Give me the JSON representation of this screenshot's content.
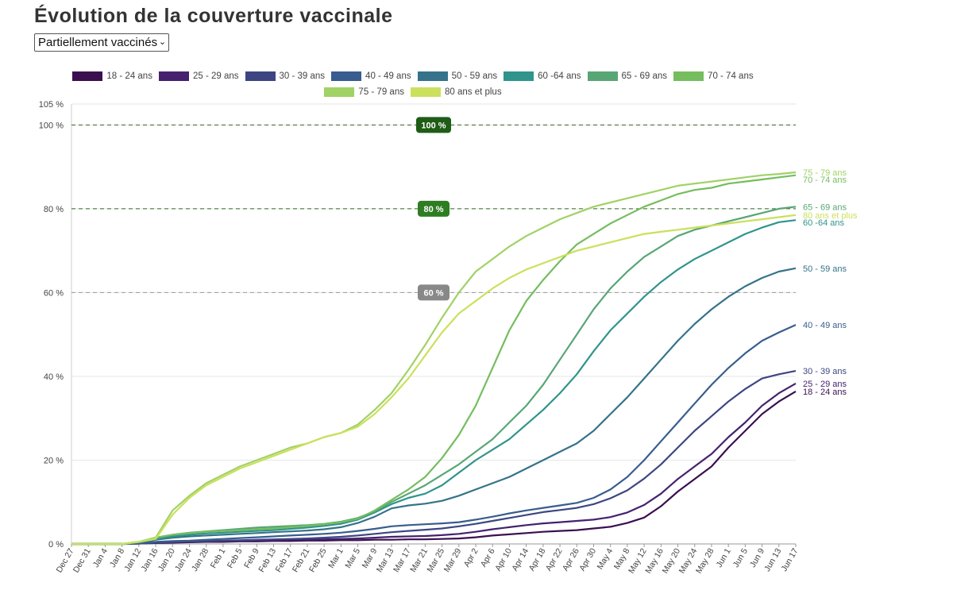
{
  "page": {
    "title": "Évolution de la couverture vaccinale",
    "selector": {
      "selected": "Partiellement vaccinés"
    }
  },
  "chart_data": {
    "type": "line",
    "title": "Évolution de la couverture vaccinale",
    "ylim": [
      0,
      105
    ],
    "y_ticks": [
      "0 %",
      "20 %",
      "40 %",
      "60 %",
      "80 %",
      "100 %",
      "105 %"
    ],
    "y_tick_values": [
      0,
      20,
      40,
      60,
      80,
      100,
      105
    ],
    "grid": "horizontal",
    "legend_position": "top",
    "x": [
      "Dec 27",
      "Dec 31",
      "Jan 4",
      "Jan 8",
      "Jan 12",
      "Jan 16",
      "Jan 20",
      "Jan 24",
      "Jan 28",
      "Feb 1",
      "Feb 5",
      "Feb 9",
      "Feb 13",
      "Feb 17",
      "Feb 21",
      "Feb 25",
      "Mar 1",
      "Mar 5",
      "Mar 9",
      "Mar 13",
      "Mar 17",
      "Mar 21",
      "Mar 25",
      "Mar 29",
      "Apr 2",
      "Apr 6",
      "Apr 10",
      "Apr 14",
      "Apr 18",
      "Apr 22",
      "Apr 26",
      "Apr 30",
      "May 4",
      "May 8",
      "May 12",
      "May 16",
      "May 20",
      "May 24",
      "May 28",
      "Jun 1",
      "Jun 5",
      "Jun 9",
      "Jun 13",
      "Jun 17"
    ],
    "reference_lines": [
      {
        "value": 100,
        "label": "100 %",
        "badge_color": "#1f5c16",
        "line_color": "#2e6b22"
      },
      {
        "value": 80,
        "label": "80 %",
        "badge_color": "#2e7d22",
        "line_color": "#2e6b22"
      },
      {
        "value": 60,
        "label": "60 %",
        "badge_color": "#888888",
        "line_color": "#999999"
      }
    ],
    "series": [
      {
        "name": "18 - 24 ans",
        "end_label": "18 - 24 ans",
        "color": "#3b0f4f",
        "values": [
          0,
          0,
          0,
          0,
          0.1,
          0.2,
          0.3,
          0.4,
          0.5,
          0.5,
          0.6,
          0.6,
          0.7,
          0.7,
          0.8,
          0.8,
          0.9,
          0.9,
          1.0,
          1.0,
          1.1,
          1.1,
          1.2,
          1.3,
          1.6,
          2.0,
          2.3,
          2.6,
          2.9,
          3.1,
          3.3,
          3.7,
          4.1,
          5.0,
          6.3,
          9.0,
          12.5,
          15.5,
          18.5,
          23.0,
          27.0,
          31.0,
          34.0,
          36.4
        ]
      },
      {
        "name": "25 - 29 ans",
        "end_label": "25 - 29 ans",
        "color": "#45216e",
        "values": [
          0,
          0,
          0,
          0,
          0.1,
          0.3,
          0.4,
          0.5,
          0.6,
          0.7,
          0.7,
          0.8,
          0.9,
          1.0,
          1.0,
          1.1,
          1.2,
          1.3,
          1.5,
          1.7,
          1.8,
          1.9,
          2.1,
          2.4,
          2.9,
          3.5,
          4.0,
          4.5,
          4.9,
          5.2,
          5.5,
          5.8,
          6.4,
          7.5,
          9.3,
          12.0,
          15.5,
          18.5,
          21.5,
          25.5,
          29.0,
          33.0,
          36.0,
          38.3
        ]
      },
      {
        "name": "30 - 39 ans",
        "end_label": "30 - 39 ans",
        "color": "#3d4682",
        "values": [
          0,
          0,
          0,
          0,
          0.1,
          0.3,
          0.5,
          0.6,
          0.7,
          0.8,
          0.9,
          1.0,
          1.1,
          1.2,
          1.3,
          1.5,
          1.7,
          2.0,
          2.4,
          2.8,
          3.1,
          3.4,
          3.7,
          4.2,
          4.8,
          5.5,
          6.2,
          6.9,
          7.6,
          8.1,
          8.6,
          9.5,
          10.9,
          12.8,
          15.6,
          19.0,
          23.0,
          27.0,
          30.5,
          34.0,
          37.0,
          39.5,
          40.5,
          41.3
        ]
      },
      {
        "name": "40 - 49 ans",
        "end_label": "40 - 49 ans",
        "color": "#385d8e",
        "values": [
          0,
          0,
          0,
          0,
          0.2,
          0.5,
          0.7,
          0.8,
          1.0,
          1.2,
          1.4,
          1.6,
          1.8,
          2.0,
          2.2,
          2.4,
          2.7,
          3.1,
          3.6,
          4.2,
          4.5,
          4.7,
          4.9,
          5.2,
          5.8,
          6.5,
          7.3,
          8.0,
          8.6,
          9.2,
          9.8,
          11.0,
          13.0,
          16.0,
          20.0,
          24.5,
          29.0,
          33.5,
          38.0,
          42.0,
          45.5,
          48.5,
          50.5,
          52.3
        ]
      },
      {
        "name": "50 - 59 ans",
        "end_label": "50 - 59 ans",
        "color": "#347389",
        "values": [
          0,
          0,
          0,
          0,
          0.3,
          1.0,
          1.5,
          1.8,
          2.0,
          2.2,
          2.4,
          2.6,
          2.8,
          3.0,
          3.2,
          3.5,
          4.0,
          5.0,
          6.5,
          8.5,
          9.2,
          9.6,
          10.3,
          11.5,
          13.0,
          14.5,
          16.0,
          18.0,
          20.0,
          22.0,
          24.0,
          27.0,
          31.0,
          35.0,
          39.5,
          44.0,
          48.5,
          52.5,
          56.0,
          59.0,
          61.5,
          63.5,
          65.0,
          65.8
        ]
      },
      {
        "name": "60 -64 ans",
        "end_label": "60 -64 ans",
        "color": "#30948c",
        "values": [
          0,
          0,
          0,
          0,
          0.4,
          1.2,
          1.8,
          2.2,
          2.5,
          2.7,
          2.9,
          3.1,
          3.3,
          3.6,
          3.9,
          4.3,
          4.8,
          5.8,
          7.5,
          9.5,
          11.0,
          12.0,
          14.0,
          17.0,
          20.0,
          22.5,
          25.0,
          28.5,
          32.0,
          36.0,
          40.5,
          46.0,
          51.0,
          55.0,
          59.0,
          62.5,
          65.5,
          68.0,
          70.0,
          72.0,
          74.0,
          75.5,
          76.8,
          77.3
        ]
      },
      {
        "name": "65 - 69 ans",
        "end_label": "65 - 69 ans",
        "color": "#58a675",
        "values": [
          0,
          0,
          0,
          0,
          0.5,
          1.5,
          2.2,
          2.7,
          3.0,
          3.3,
          3.6,
          3.9,
          4.1,
          4.3,
          4.5,
          4.8,
          5.3,
          6.2,
          7.8,
          10.0,
          12.0,
          14.0,
          16.5,
          19.0,
          22.0,
          25.0,
          29.0,
          33.0,
          38.0,
          44.0,
          50.0,
          56.0,
          61.0,
          65.0,
          68.5,
          71.0,
          73.5,
          75.0,
          76.0,
          77.0,
          78.0,
          79.0,
          80.0,
          80.5
        ]
      },
      {
        "name": "70 - 74 ans",
        "end_label": "70 - 74 ans",
        "color": "#75bd5f",
        "values": [
          0,
          0,
          0,
          0,
          0.5,
          1.5,
          2.2,
          2.6,
          2.9,
          3.1,
          3.3,
          3.5,
          3.7,
          4.0,
          4.3,
          4.7,
          5.2,
          6.0,
          8.0,
          10.5,
          13.0,
          16.0,
          20.5,
          26.0,
          33.0,
          42.0,
          51.0,
          58.0,
          63.0,
          67.5,
          71.5,
          74.0,
          76.5,
          78.5,
          80.5,
          82.0,
          83.5,
          84.5,
          85.0,
          86.0,
          86.5,
          87.0,
          87.5,
          88.0
        ]
      },
      {
        "name": "75 - 79 ans",
        "end_label": "75 - 79 ans",
        "color": "#a0d266",
        "values": [
          0,
          0,
          0,
          0,
          0.5,
          1.5,
          8.0,
          11.5,
          14.5,
          16.5,
          18.5,
          20.0,
          21.5,
          23.0,
          24.0,
          25.5,
          26.5,
          28.5,
          32.0,
          36.0,
          41.5,
          47.5,
          54.0,
          60.0,
          65.0,
          68.0,
          71.0,
          73.5,
          75.5,
          77.5,
          79.0,
          80.5,
          81.5,
          82.5,
          83.5,
          84.5,
          85.5,
          86.0,
          86.5,
          87.0,
          87.5,
          88.0,
          88.3,
          88.7
        ]
      },
      {
        "name": "80 ans et plus",
        "end_label": "80 ans et plus",
        "color": "#cbe05c",
        "values": [
          0,
          0,
          0,
          0,
          0.5,
          1.2,
          7.0,
          11.0,
          14.0,
          16.0,
          18.0,
          19.5,
          21.0,
          22.5,
          24.0,
          25.5,
          26.5,
          28.0,
          31.0,
          35.0,
          39.5,
          45.0,
          50.5,
          55.0,
          58.0,
          61.0,
          63.5,
          65.5,
          67.0,
          68.5,
          70.0,
          71.0,
          72.0,
          73.0,
          74.0,
          74.5,
          75.0,
          75.5,
          76.0,
          76.5,
          77.0,
          77.5,
          78.0,
          78.5
        ]
      }
    ]
  }
}
